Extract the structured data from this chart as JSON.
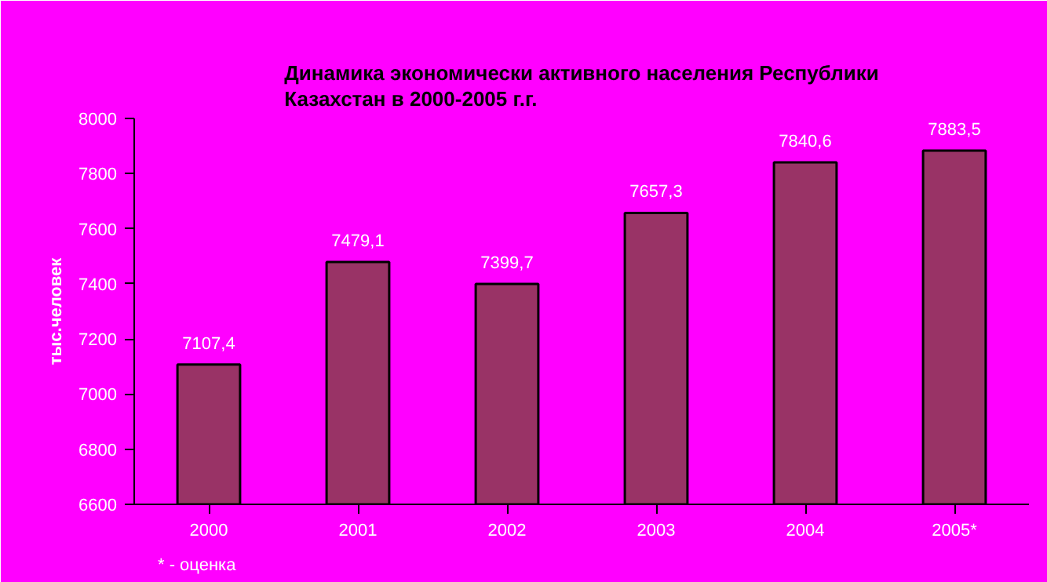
{
  "chart_data": {
    "type": "bar",
    "title": "Динамика экономически активного населения Республики\nКазахстан в 2000-2005 г.г.",
    "ylabel": "тыс.человек",
    "categories": [
      "2000",
      "2001",
      "2002",
      "2003",
      "2004",
      "2005*"
    ],
    "values": [
      7107.4,
      7479.1,
      7399.7,
      7657.3,
      7840.6,
      7883.5
    ],
    "value_labels": [
      "7107,4",
      "7479,1",
      "7399,7",
      "7657,3",
      "7840,6",
      "7883,5"
    ],
    "color": "#993366",
    "ylim": [
      6600,
      8000
    ],
    "yticks": [
      6600,
      6800,
      7000,
      7200,
      7400,
      7600,
      7800,
      8000
    ],
    "grid": false,
    "annotations": [
      "* - оценка"
    ]
  }
}
